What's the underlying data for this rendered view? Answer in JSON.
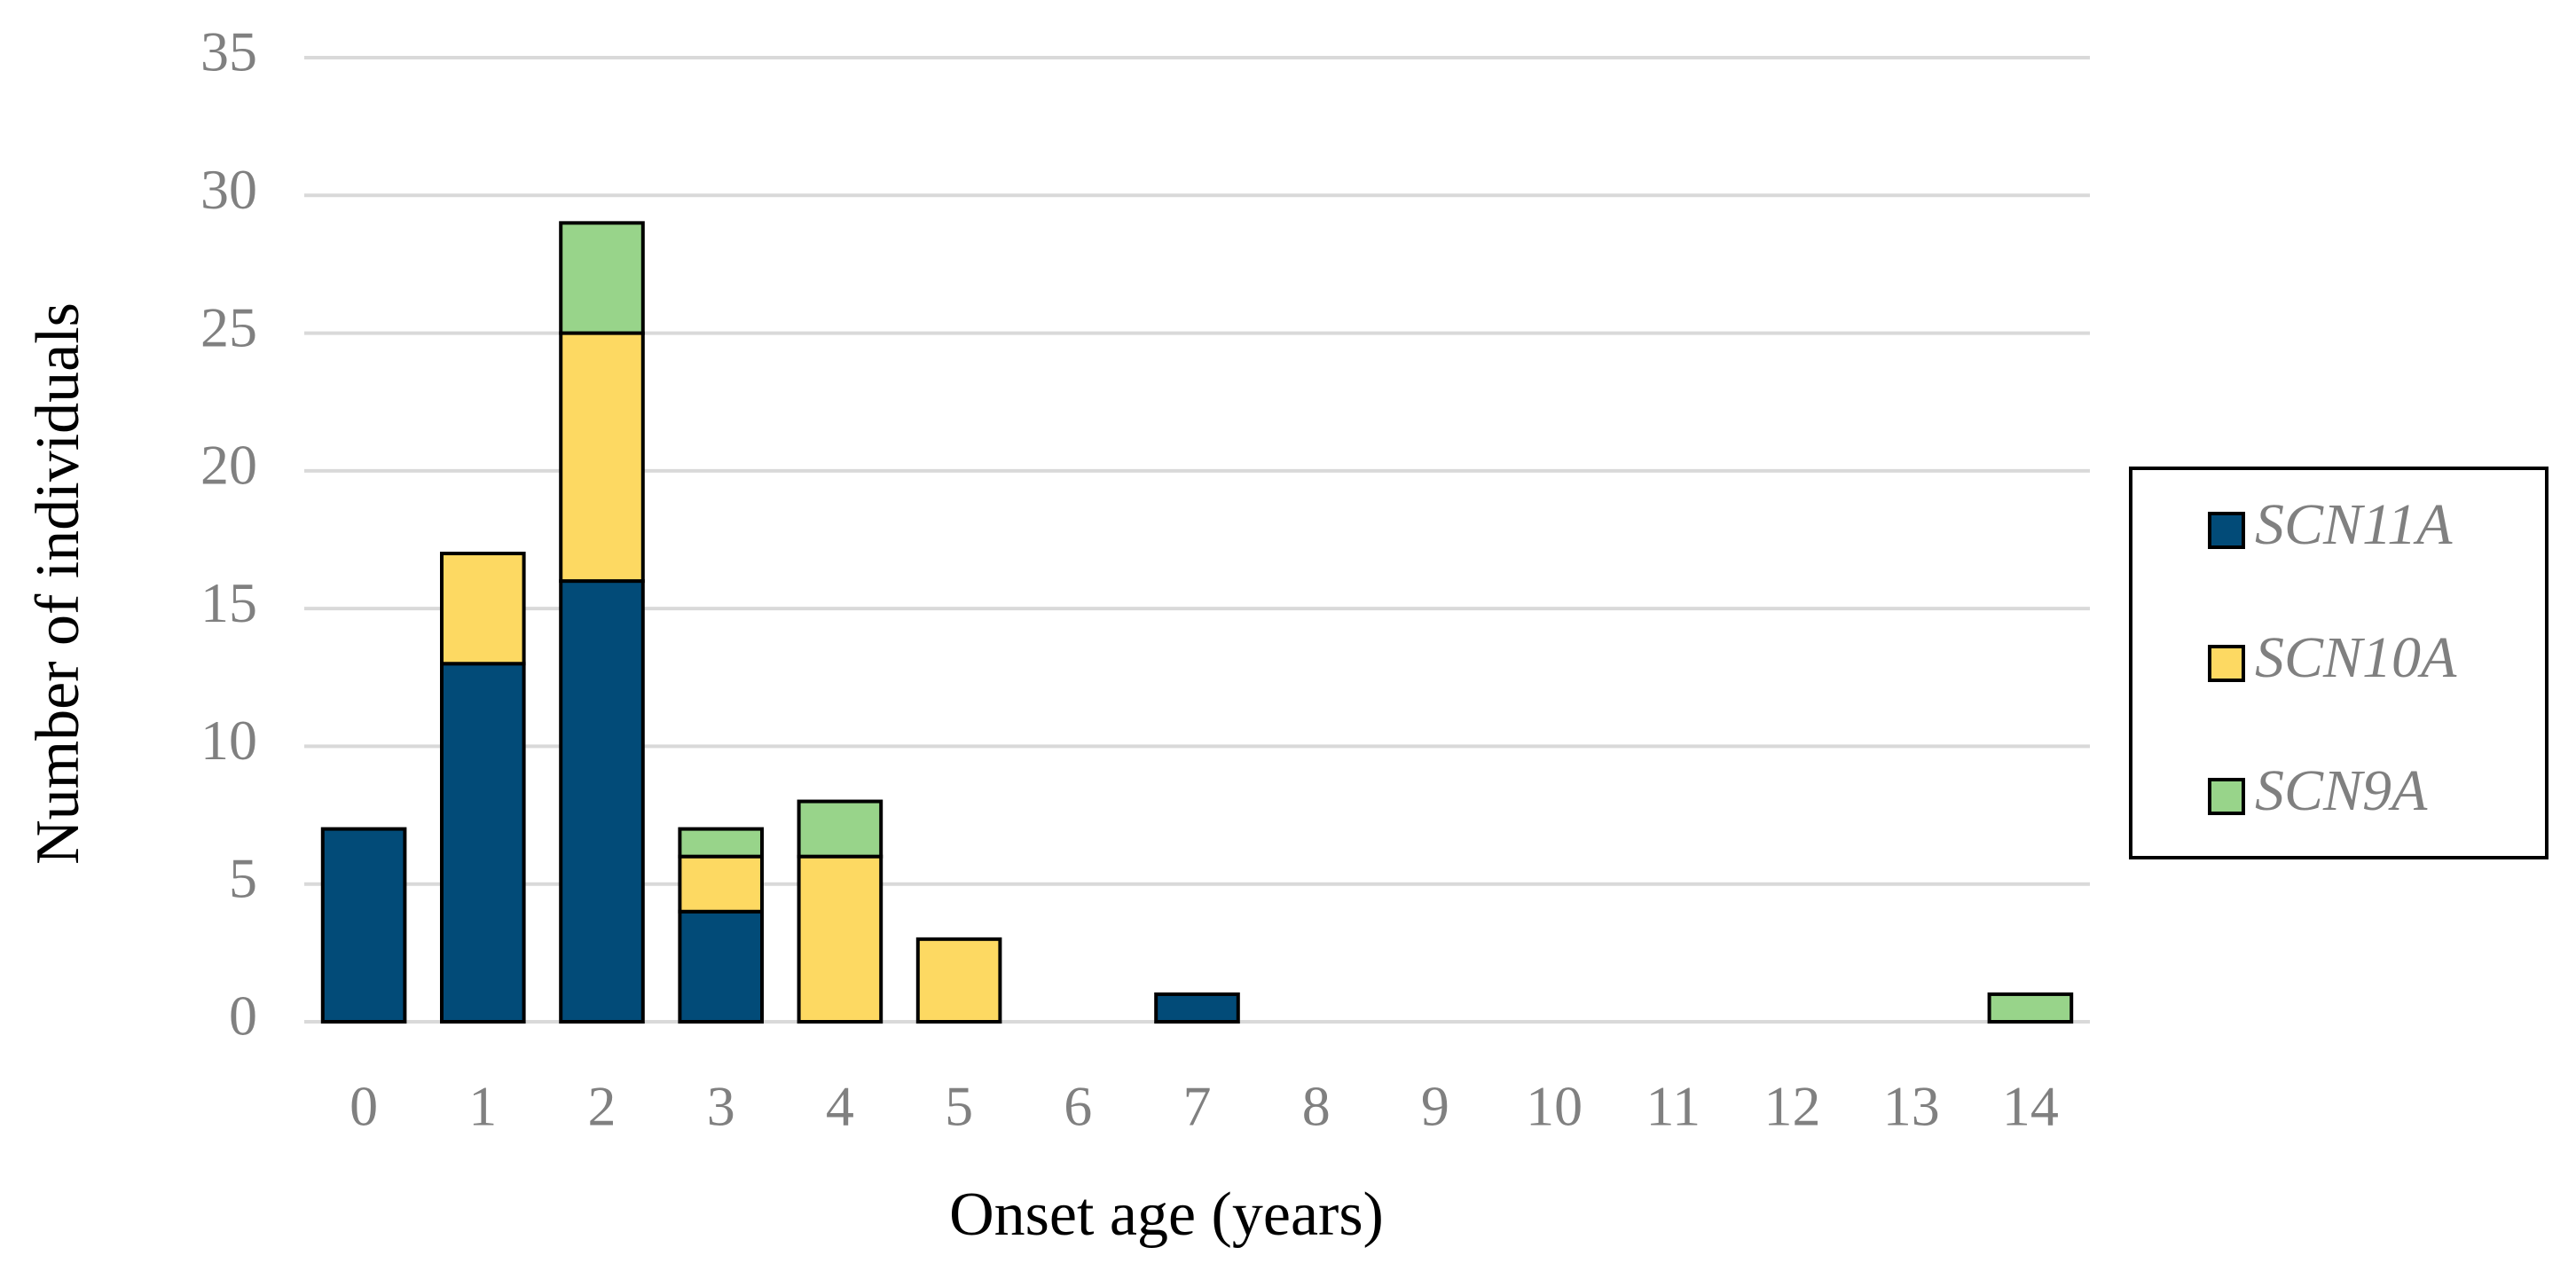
{
  "chart_data": {
    "type": "bar",
    "stacked": true,
    "x_label": "Onset age (years)",
    "y_label": "Number of individuals",
    "categories": [
      "0",
      "1",
      "2",
      "3",
      "4",
      "5",
      "6",
      "7",
      "8",
      "9",
      "10",
      "11",
      "12",
      "13",
      "14"
    ],
    "series": [
      {
        "name": "SCN11A",
        "color": "#024b78",
        "values": [
          7,
          13,
          16,
          4,
          0,
          0,
          0,
          1,
          0,
          0,
          0,
          0,
          0,
          0,
          0
        ]
      },
      {
        "name": "SCN10A",
        "color": "#fdd962",
        "values": [
          0,
          4,
          9,
          2,
          6,
          3,
          0,
          0,
          0,
          0,
          0,
          0,
          0,
          0,
          0
        ]
      },
      {
        "name": "SCN9A",
        "color": "#98d48a",
        "values": [
          0,
          0,
          4,
          1,
          2,
          0,
          0,
          0,
          0,
          0,
          0,
          0,
          0,
          0,
          1
        ]
      }
    ],
    "ylim": [
      0,
      35
    ],
    "yticks": [
      0,
      5,
      10,
      15,
      20,
      25,
      30,
      35
    ],
    "grid": true,
    "legend": "right"
  }
}
